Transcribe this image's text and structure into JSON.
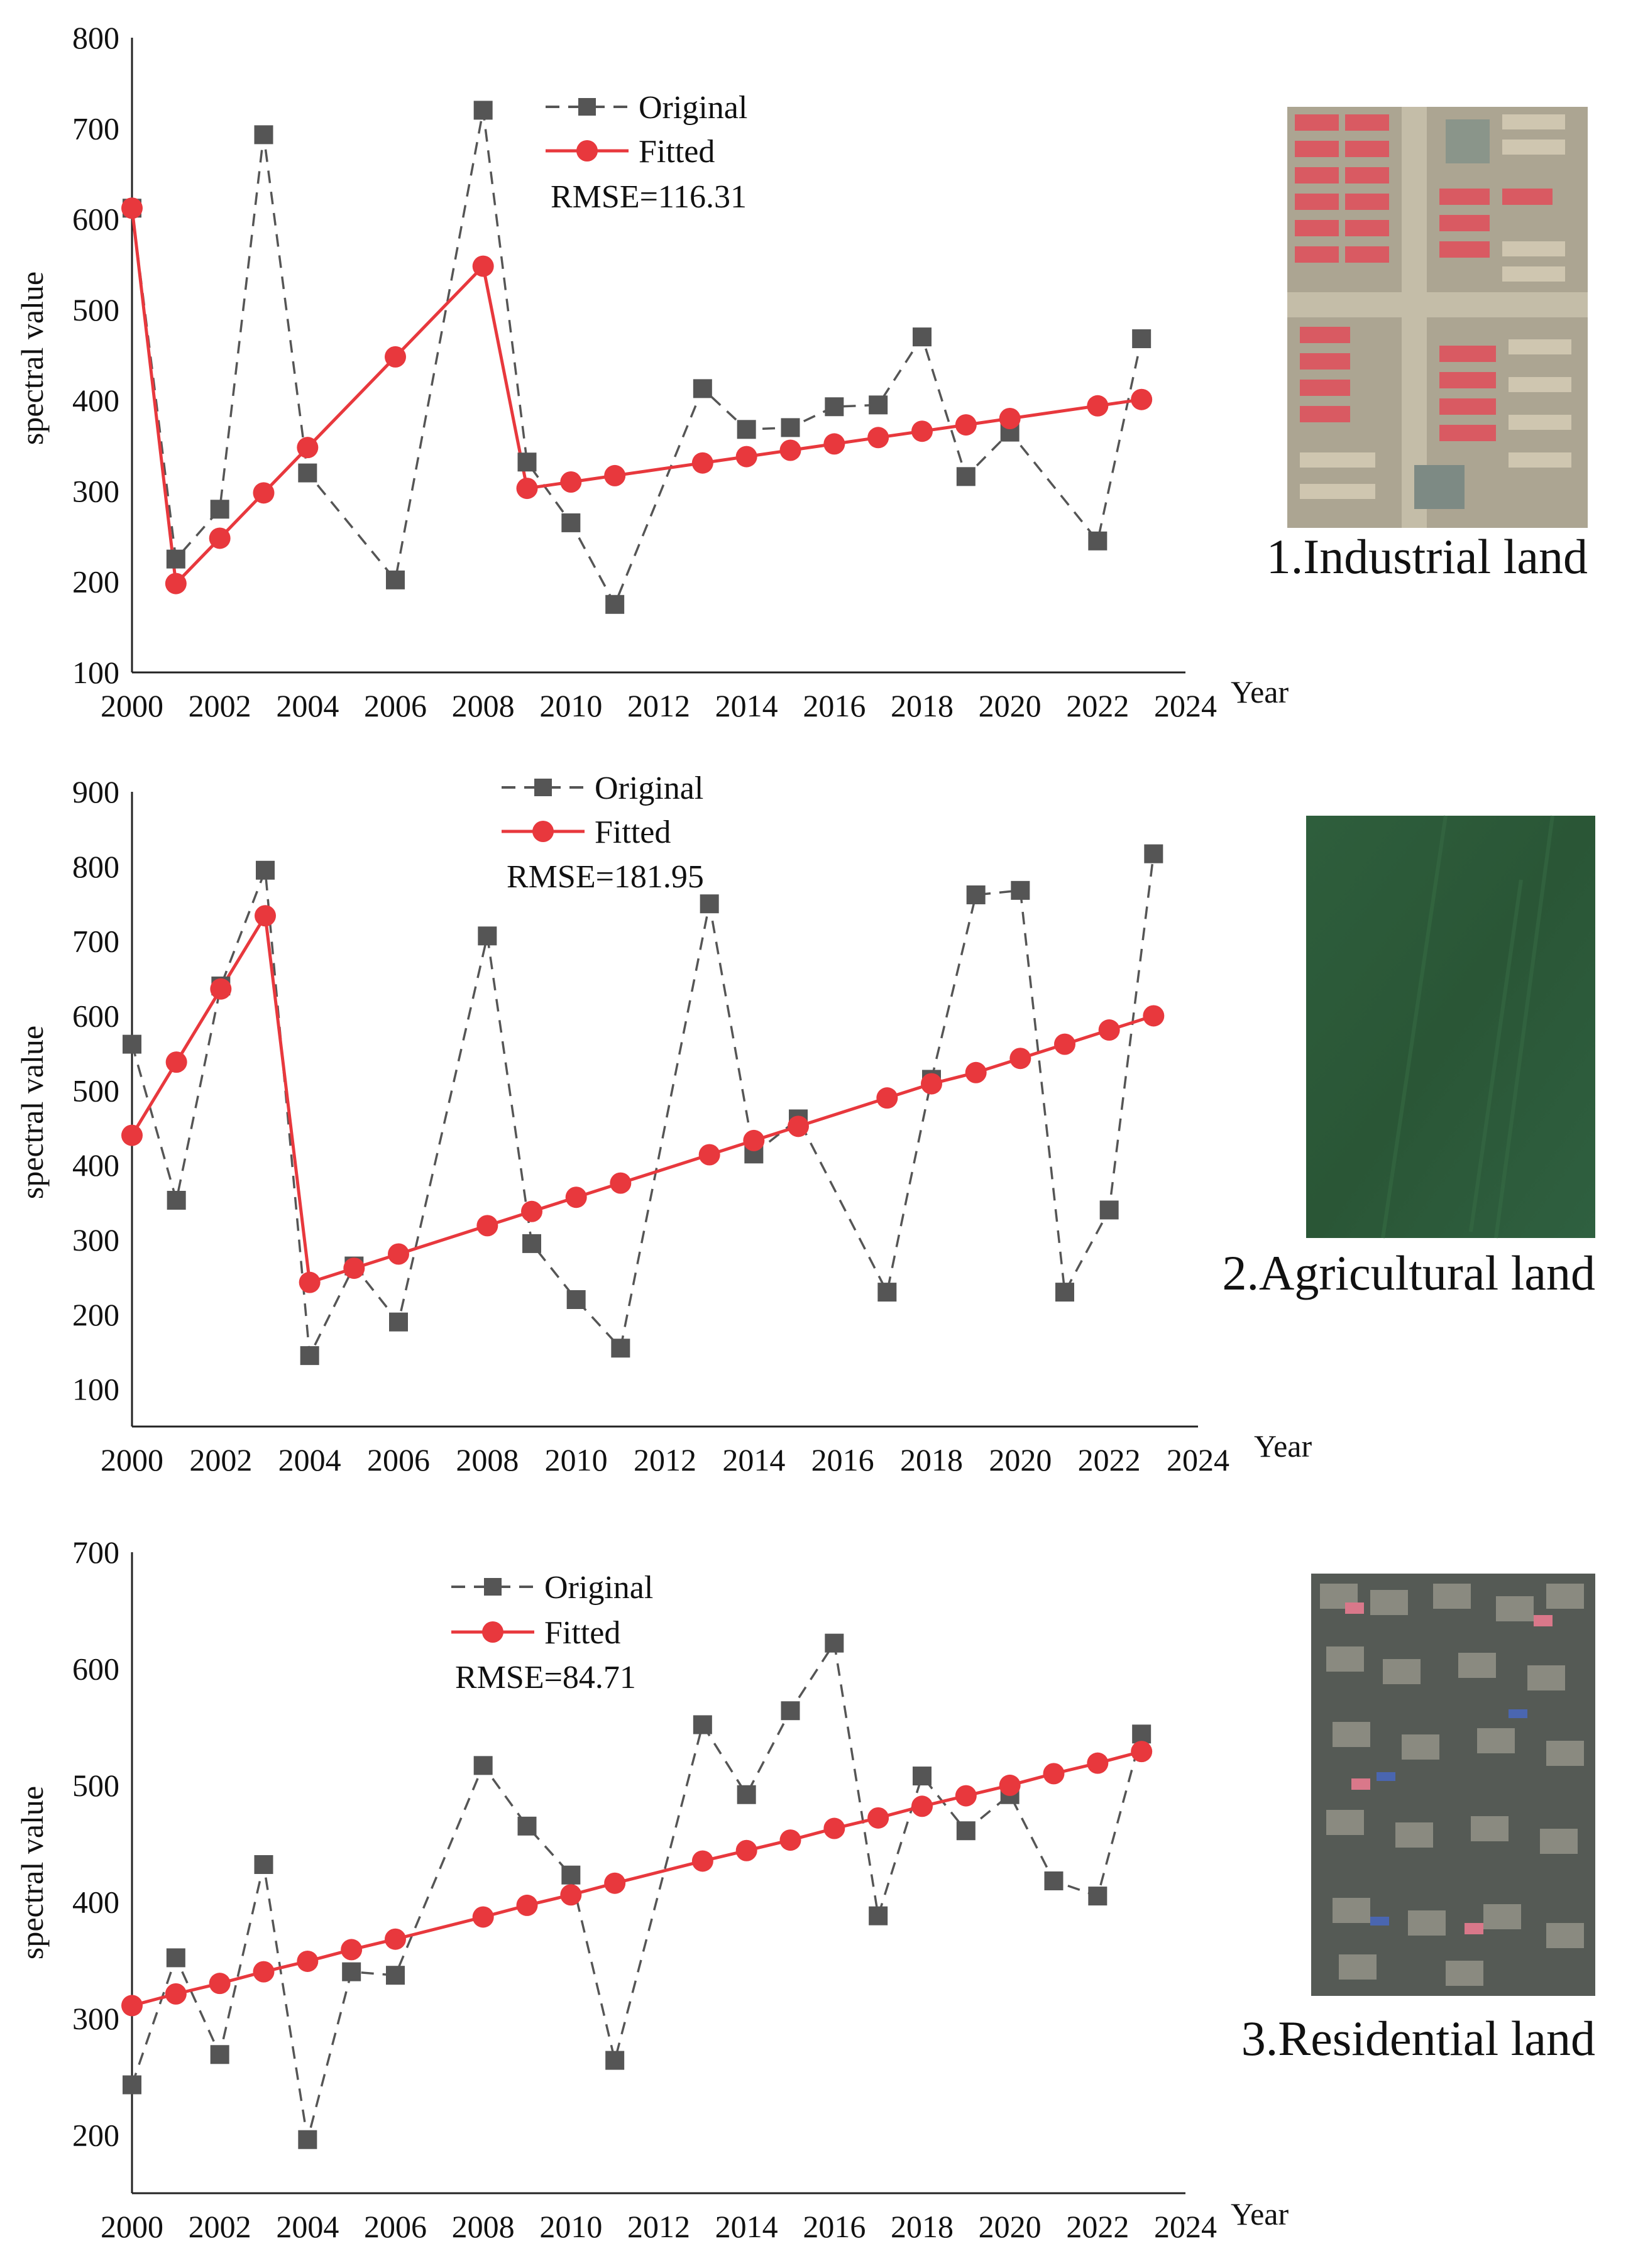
{
  "chart_data": [
    {
      "type": "line",
      "panel_label": "1.Industrial land",
      "xlabel": "Year",
      "ylabel": "spectral value",
      "xlim": [
        2000,
        2024
      ],
      "ylim": [
        100,
        800
      ],
      "xticks": [
        2000,
        2002,
        2004,
        2006,
        2008,
        2010,
        2012,
        2014,
        2016,
        2018,
        2020,
        2022,
        2024
      ],
      "yticks": [
        100,
        200,
        300,
        400,
        500,
        600,
        700,
        800
      ],
      "rmse": "RMSE=116.31",
      "legend_position": "top-center",
      "series": [
        {
          "name": "Original",
          "style": "dashed",
          "marker": "square",
          "color": "#555555",
          "x": [
            2000,
            2001,
            2002,
            2003,
            2004,
            2006,
            2008,
            2009,
            2010,
            2011,
            2013,
            2014,
            2015,
            2016,
            2017,
            2018,
            2019,
            2020,
            2022,
            2023
          ],
          "values": [
            612,
            225,
            280,
            693,
            320,
            202,
            720,
            332,
            265,
            175,
            413,
            368,
            370,
            393,
            395,
            470,
            316,
            365,
            245,
            468
          ]
        },
        {
          "name": "Fitted",
          "style": "solid",
          "marker": "circle",
          "color": "#e8383d",
          "x": [
            2000,
            2001,
            2002,
            2003,
            2004,
            2006,
            2008,
            2009,
            2010,
            2011,
            2013,
            2014,
            2015,
            2016,
            2017,
            2018,
            2019,
            2020,
            2022,
            2023
          ],
          "values": [
            612,
            198,
            248,
            298,
            348,
            448,
            548,
            303,
            310,
            317,
            331,
            338,
            345,
            352,
            359,
            366,
            373,
            380,
            394,
            401
          ]
        }
      ]
    },
    {
      "type": "line",
      "panel_label": "2.Agricultural land",
      "xlabel": "Year",
      "ylabel": "spectral value",
      "xlim": [
        2000,
        2024
      ],
      "ylim": [
        50,
        900
      ],
      "xticks": [
        2000,
        2002,
        2004,
        2006,
        2008,
        2010,
        2012,
        2014,
        2016,
        2018,
        2020,
        2022,
        2024
      ],
      "yticks": [
        100,
        200,
        300,
        400,
        500,
        600,
        700,
        800,
        900
      ],
      "rmse": "RMSE=181.95",
      "legend_position": "top-center",
      "series": [
        {
          "name": "Original",
          "style": "dashed",
          "marker": "square",
          "color": "#555555",
          "x": [
            2000,
            2001,
            2002,
            2003,
            2004,
            2005,
            2006,
            2008,
            2009,
            2010,
            2011,
            2013,
            2014,
            2015,
            2017,
            2018,
            2019,
            2020,
            2021,
            2022,
            2023
          ],
          "values": [
            562,
            353,
            640,
            795,
            145,
            265,
            190,
            707,
            295,
            220,
            155,
            750,
            415,
            462,
            230,
            515,
            762,
            768,
            230,
            340,
            817
          ]
        },
        {
          "name": "Fitted",
          "style": "solid",
          "marker": "circle",
          "color": "#e8383d",
          "x": [
            2000,
            2001,
            2002,
            2003,
            2004,
            2005,
            2006,
            2008,
            2009,
            2010,
            2011,
            2013,
            2014,
            2015,
            2017,
            2018,
            2019,
            2020,
            2021,
            2022,
            2023
          ],
          "values": [
            440,
            538,
            636,
            734,
            243,
            262,
            281,
            319,
            338,
            357,
            376,
            414,
            433,
            452,
            490,
            509,
            524,
            543,
            562,
            581,
            600
          ]
        }
      ]
    },
    {
      "type": "line",
      "panel_label": "3.Residential land",
      "xlabel": "Year",
      "ylabel": "spectral value",
      "xlim": [
        2000,
        2024
      ],
      "ylim": [
        150,
        700
      ],
      "xticks": [
        2000,
        2002,
        2004,
        2006,
        2008,
        2010,
        2012,
        2014,
        2016,
        2018,
        2020,
        2022,
        2024
      ],
      "yticks": [
        200,
        300,
        400,
        500,
        600,
        700
      ],
      "rmse": "RMSE=84.71",
      "legend_position": "top-left",
      "series": [
        {
          "name": "Original",
          "style": "dashed",
          "marker": "square",
          "color": "#555555",
          "x": [
            2000,
            2001,
            2002,
            2003,
            2004,
            2005,
            2006,
            2008,
            2009,
            2010,
            2011,
            2013,
            2014,
            2015,
            2016,
            2017,
            2018,
            2019,
            2020,
            2021,
            2022,
            2023
          ],
          "values": [
            243,
            352,
            269,
            432,
            196,
            340,
            337,
            517,
            465,
            423,
            264,
            552,
            492,
            564,
            622,
            388,
            508,
            461,
            492,
            418,
            405,
            544
          ]
        },
        {
          "name": "Fitted",
          "style": "solid",
          "marker": "circle",
          "color": "#e8383d",
          "x": [
            2000,
            2001,
            2002,
            2003,
            2004,
            2005,
            2006,
            2008,
            2009,
            2010,
            2011,
            2013,
            2014,
            2015,
            2016,
            2017,
            2018,
            2019,
            2020,
            2021,
            2022,
            2023
          ],
          "values": [
            311,
            321,
            330,
            340,
            349,
            359,
            368,
            387,
            397,
            406,
            416,
            435,
            444,
            453,
            463,
            472,
            482,
            491,
            500,
            510,
            519,
            529
          ]
        }
      ]
    }
  ]
}
